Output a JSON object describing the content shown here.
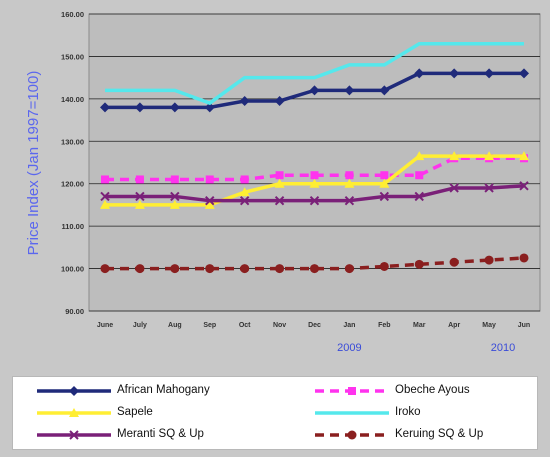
{
  "chart_data": {
    "type": "line",
    "ylabel": "Price Index (Jan 1997=100)",
    "ylim": [
      90,
      160
    ],
    "yticks": [
      "90.00",
      "100.00",
      "110.00",
      "120.00",
      "130.00",
      "140.00",
      "150.00",
      "160.00"
    ],
    "categories": [
      "June",
      "July",
      "Aug",
      "Sep",
      "Oct",
      "Nov",
      "Dec",
      "Jan",
      "Feb",
      "Mar",
      "Apr",
      "May",
      "Jun"
    ],
    "year_labels": [
      {
        "label": "2009",
        "at": 7
      },
      {
        "label": "2010",
        "at": 11.4
      }
    ],
    "grid": true,
    "legend_position": "bottom",
    "series": [
      {
        "name": "African Mahogany",
        "color": "#1f2a7a",
        "marker": "diamond",
        "dash": "solid",
        "values": [
          138,
          138,
          138,
          138,
          139.5,
          139.5,
          142,
          142,
          142,
          146,
          146,
          146,
          146
        ]
      },
      {
        "name": "Obeche Ayous",
        "color": "#ff33ee",
        "marker": "square",
        "dash": "dashed",
        "values": [
          121,
          121,
          121,
          121,
          121,
          122,
          122,
          122,
          122,
          122,
          126,
          126,
          126
        ]
      },
      {
        "name": "Sapele",
        "color": "#ffee33",
        "marker": "triangle",
        "dash": "solid",
        "values": [
          115,
          115,
          115,
          115,
          118,
          120,
          120,
          120,
          120,
          126.5,
          126.5,
          126.5,
          126.5
        ]
      },
      {
        "name": "Iroko",
        "color": "#55e8ec",
        "marker": "none",
        "dash": "solid",
        "values": [
          142,
          142,
          142,
          139,
          145,
          145,
          145,
          148,
          148,
          153,
          153,
          153,
          153
        ]
      },
      {
        "name": "Meranti SQ & Up",
        "color": "#7a2078",
        "marker": "x",
        "dash": "solid",
        "values": [
          117,
          117,
          117,
          116,
          116,
          116,
          116,
          116,
          117,
          117,
          119,
          119,
          119.5
        ]
      },
      {
        "name": "Keruing SQ & Up",
        "color": "#8a1f1f",
        "marker": "circle",
        "dash": "dashed",
        "values": [
          100,
          100,
          100,
          100,
          100,
          100,
          100,
          100,
          100.5,
          101,
          101.5,
          102,
          102.5
        ]
      }
    ]
  }
}
